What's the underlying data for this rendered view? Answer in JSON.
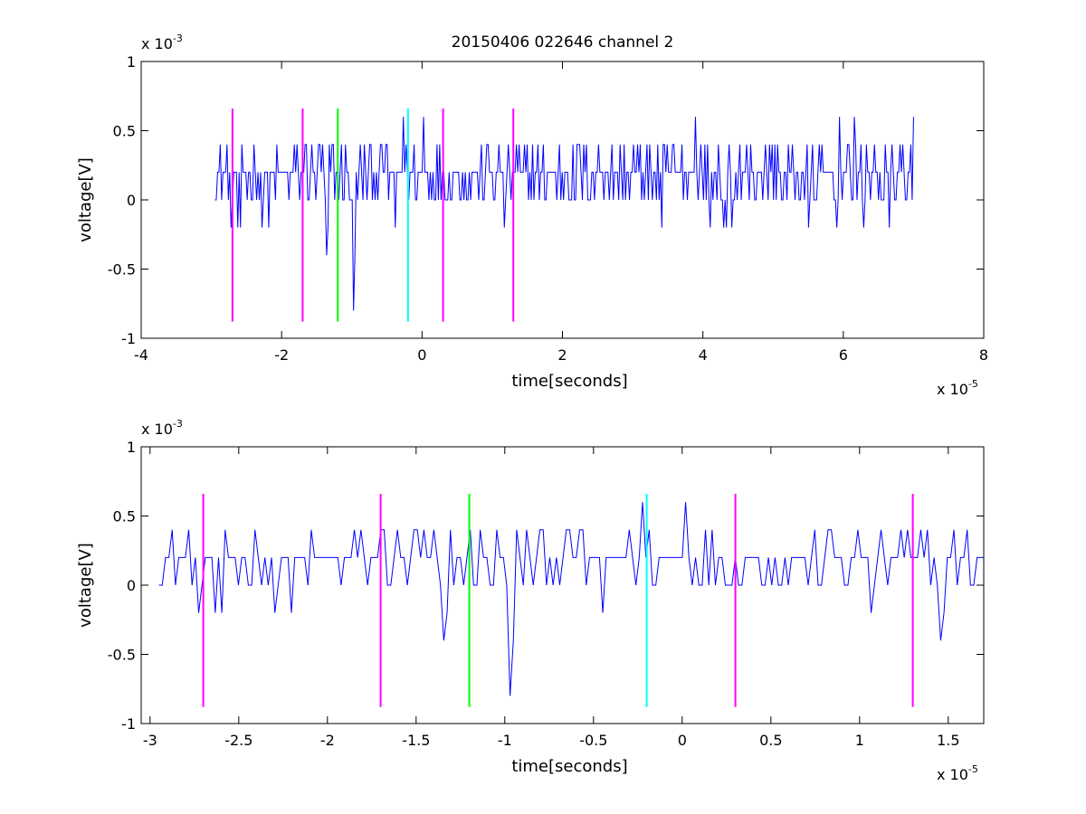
{
  "chart_data": [
    {
      "type": "line",
      "title": "20150406 022646 channel 2",
      "xlabel": "time[seconds]",
      "ylabel": "voltage[V]",
      "x_multiplier": {
        "base": "x 10",
        "exponent": "-5"
      },
      "y_multiplier": {
        "base": "x 10",
        "exponent": "-3"
      },
      "xlim": [
        -4e-05,
        8e-05
      ],
      "ylim": [
        -0.001,
        0.001
      ],
      "x_ticks": [
        -4e-05,
        -2e-05,
        0,
        2e-05,
        4e-05,
        6e-05,
        8e-05
      ],
      "x_tick_labels": [
        "-4",
        "-2",
        "0",
        "2",
        "4",
        "6",
        "8"
      ],
      "y_ticks": [
        -0.001,
        -0.0005,
        0,
        0.0005,
        0.001
      ],
      "y_tick_labels": [
        "-1",
        "-0.5",
        "0",
        "0.5",
        "1"
      ],
      "grid": false,
      "signal": {
        "color": "#0000ff",
        "x_start": -2.95e-05,
        "x_end": 7e-05,
        "quantum": 0.0002,
        "levels_approx": [
          -0.0008,
          -0.0006,
          -0.0004,
          -0.0002,
          0,
          0.0002,
          0.0004,
          0.0006
        ],
        "mean_approx": 0.00015,
        "notable_dips": [
          {
            "x": -1.35e-05,
            "y": -0.0004
          },
          {
            "x": -9.7e-06,
            "y": -0.0008
          }
        ],
        "notable_peaks": [
          {
            "x": -2.7e-06,
            "y": 0.0006
          },
          {
            "x": 2e-07,
            "y": 0.0006
          },
          {
            "x": 3.9e-05,
            "y": 0.0006
          },
          {
            "x": 5.95e-05,
            "y": 0.0006
          },
          {
            "x": 6.15e-05,
            "y": 0.0006
          },
          {
            "x": 7e-05,
            "y": 0.0006
          }
        ]
      },
      "markers": [
        {
          "x": -2.7e-05,
          "color": "#ff00ff"
        },
        {
          "x": -1.7e-05,
          "color": "#ff00ff"
        },
        {
          "x": -1.2e-05,
          "color": "#00ff00"
        },
        {
          "x": -2e-06,
          "color": "#00ffff"
        },
        {
          "x": 3e-06,
          "color": "#ff00ff"
        },
        {
          "x": 1.3e-05,
          "color": "#ff00ff"
        }
      ],
      "marker_range": [
        -0.00088,
        0.00066
      ]
    },
    {
      "type": "line",
      "xlabel": "time[seconds]",
      "ylabel": "voltage[V]",
      "x_multiplier": {
        "base": "x 10",
        "exponent": "-5"
      },
      "y_multiplier": {
        "base": "x 10",
        "exponent": "-3"
      },
      "xlim": [
        -3.05e-05,
        1.7e-05
      ],
      "ylim": [
        -0.001,
        0.001
      ],
      "x_ticks": [
        -3e-05,
        -2.5e-05,
        -2e-05,
        -1.5e-05,
        -1e-05,
        -5e-06,
        0,
        5e-06,
        1e-05,
        1.5e-05
      ],
      "x_tick_labels": [
        "-3",
        "-2.5",
        "-2",
        "-1.5",
        "-1",
        "-0.5",
        "0",
        "0.5",
        "1",
        "1.5"
      ],
      "y_ticks": [
        -0.001,
        -0.0005,
        0,
        0.0005,
        0.001
      ],
      "y_tick_labels": [
        "-1",
        "-0.5",
        "0",
        "0.5",
        "1"
      ],
      "grid": false,
      "signal": {
        "color": "#0000ff",
        "x_start": -2.95e-05,
        "x_end": 1.7e-05,
        "quantum": 0.0002,
        "levels_approx": [
          -0.0008,
          -0.0004,
          -0.0002,
          0,
          0.0002,
          0.0004,
          0.0006
        ],
        "mean_approx": 0.00015,
        "notable_dips": [
          {
            "x": -1.35e-05,
            "y": -0.0004
          },
          {
            "x": -9.7e-06,
            "y": -0.0008
          },
          {
            "x": 1.45e-05,
            "y": -0.0004
          }
        ],
        "notable_peaks": [
          {
            "x": -2.2e-06,
            "y": 0.0006
          },
          {
            "x": 2e-07,
            "y": 0.0006
          }
        ]
      },
      "markers": [
        {
          "x": -2.7e-05,
          "color": "#ff00ff"
        },
        {
          "x": -1.7e-05,
          "color": "#ff00ff"
        },
        {
          "x": -1.2e-05,
          "color": "#00ff00"
        },
        {
          "x": -2e-06,
          "color": "#00ffff"
        },
        {
          "x": 3e-06,
          "color": "#ff00ff"
        },
        {
          "x": 1.3e-05,
          "color": "#ff00ff"
        }
      ],
      "marker_range": [
        -0.00088,
        0.00066
      ]
    }
  ]
}
